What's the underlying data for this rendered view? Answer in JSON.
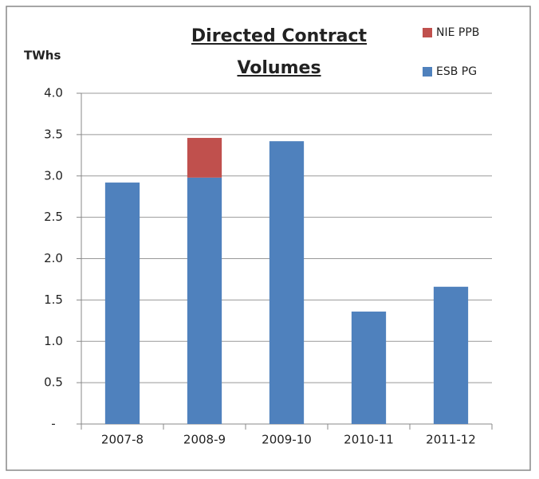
{
  "chart_data": {
    "type": "stacked-bar",
    "title": "Directed Contract Volumes",
    "y_label": "TWhs",
    "categories": [
      "2007-8",
      "2008-9",
      "2009-10",
      "2010-11",
      "2011-12"
    ],
    "series": [
      {
        "name": "ESB PG",
        "color": "#4f81bd",
        "values": [
          2.92,
          2.98,
          3.42,
          1.36,
          1.66
        ]
      },
      {
        "name": "NIE PPB",
        "color": "#c0504d",
        "values": [
          null,
          0.48,
          null,
          null,
          null
        ]
      }
    ],
    "ylim": [
      0,
      4
    ],
    "yticks": [
      {
        "value": 0,
        "label": "-"
      },
      0.5,
      {
        "value": 1,
        "label": "1.0"
      },
      1.5,
      {
        "value": 2,
        "label": "2.0"
      },
      2.5,
      {
        "value": 3,
        "label": "3.0"
      },
      3.5,
      {
        "value": 4,
        "label": "4.0"
      }
    ],
    "grid": true
  }
}
